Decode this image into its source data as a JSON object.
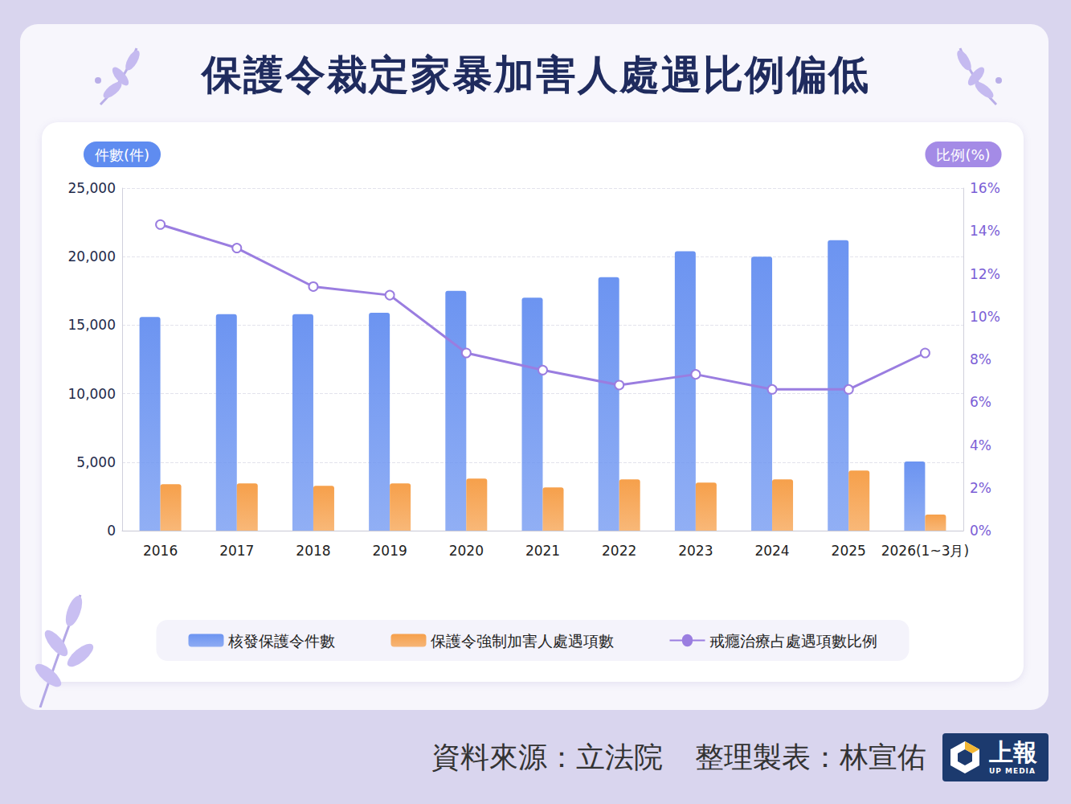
{
  "chart_data": {
    "type": "bar",
    "title": "保護令裁定家暴加害人處遇比例偏低",
    "categories": [
      "2016",
      "2017",
      "2018",
      "2019",
      "2020",
      "2021",
      "2022",
      "2023",
      "2024",
      "2025",
      "2026(1~3月)"
    ],
    "series": [
      {
        "name": "核發保護令件數",
        "type": "bar",
        "color": "#6c94f1",
        "values": [
          15600,
          15800,
          15800,
          15900,
          17500,
          17000,
          18500,
          20400,
          20000,
          21200,
          5050
        ]
      },
      {
        "name": "保護令強制加害人處遇項數",
        "type": "bar",
        "color": "#f6a04b",
        "values": [
          3390,
          3450,
          3270,
          3450,
          3800,
          3160,
          3740,
          3510,
          3740,
          4390,
          1170
        ]
      },
      {
        "name": "戒癮治療占處遇項數比例",
        "type": "line",
        "axis": "y2",
        "color": "#9a7de0",
        "marker": "circle",
        "values": [
          14.3,
          13.2,
          11.4,
          11.0,
          8.3,
          7.5,
          6.8,
          7.3,
          6.6,
          6.6,
          8.3
        ]
      }
    ],
    "y_label": "件數(件)",
    "y2_label": "比例(%)",
    "ylim": [
      0,
      25000
    ],
    "yticks": [
      0,
      {
        "value": 5000,
        "label": "5,000"
      },
      {
        "value": 10000,
        "label": "10,000"
      },
      {
        "value": 15000,
        "label": "15,000"
      },
      {
        "value": 20000,
        "label": "20,000"
      },
      {
        "value": 25000,
        "label": "25,000"
      }
    ],
    "y2lim": [
      0,
      16
    ],
    "y2ticks": [
      {
        "value": 0,
        "label": "0%"
      },
      {
        "value": 2,
        "label": "2%"
      },
      {
        "value": 4,
        "label": "4%"
      },
      {
        "value": 6,
        "label": "6%"
      },
      {
        "value": 8,
        "label": "8%"
      },
      {
        "value": 10,
        "label": "10%"
      },
      {
        "value": 12,
        "label": "12%"
      },
      {
        "value": 14,
        "label": "14%"
      },
      {
        "value": 16,
        "label": "16%"
      }
    ],
    "grid": true,
    "legend": "bottom",
    "footer": [
      "資料來源：立法院",
      "整理製表：林宣佑"
    ],
    "logo": [
      "上報",
      "UP MEDIA"
    ]
  }
}
